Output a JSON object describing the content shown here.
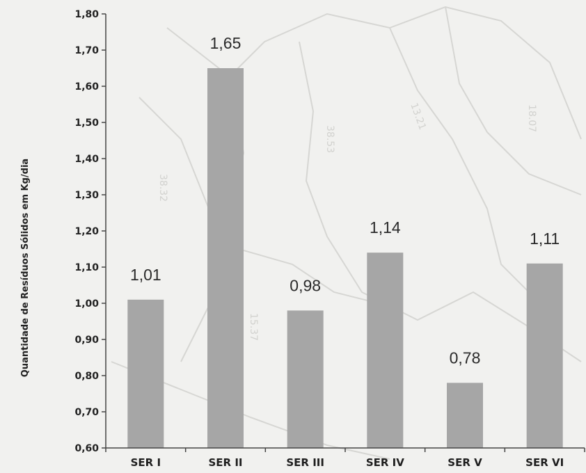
{
  "chart_data": {
    "type": "bar",
    "categories": [
      "SER I",
      "SER II",
      "SER III",
      "SER IV",
      "SER V",
      "SER VI"
    ],
    "values": [
      1.01,
      1.65,
      0.98,
      1.14,
      0.78,
      1.11
    ],
    "data_labels": [
      "1,01",
      "1,65",
      "0,98",
      "1,14",
      "0,78",
      "1,11"
    ],
    "title": "",
    "xlabel": "",
    "ylabel": "Quantidade de Resíduos Sólidos em Kg/dia",
    "ylim": [
      0.6,
      1.8
    ],
    "yticks": [
      0.6,
      0.7,
      0.8,
      0.9,
      1.0,
      1.1,
      1.2,
      1.3,
      1.4,
      1.5,
      1.6,
      1.7,
      1.8
    ],
    "ytick_labels": [
      "0,60",
      "0,70",
      "0,80",
      "0,90",
      "1,00",
      "1,10",
      "1,20",
      "1,30",
      "1,40",
      "1,50",
      "1,60",
      "1,70",
      "1,80"
    ],
    "grid": false,
    "legend": "none",
    "bar_color": "#a6a6a6"
  }
}
